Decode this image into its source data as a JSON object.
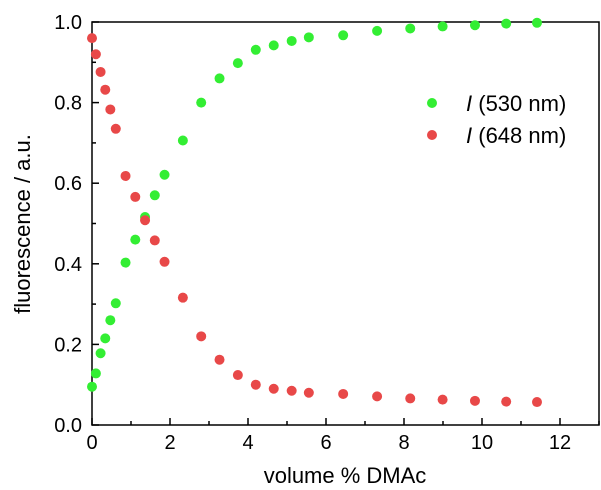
{
  "chart_data": {
    "type": "scatter",
    "title": "",
    "xlabel": "volume % DMAc",
    "ylabel": "fluorescence / a.u.",
    "xlim": [
      0,
      13
    ],
    "ylim": [
      0,
      1.0
    ],
    "xticks": [
      0,
      2,
      4,
      6,
      8,
      10,
      12
    ],
    "xtick_labels": [
      "0",
      "2",
      "4",
      "6",
      "8",
      "10",
      "12"
    ],
    "yticks": [
      0.0,
      0.2,
      0.4,
      0.6,
      0.8,
      1.0
    ],
    "ytick_labels": [
      "0.0",
      "0.2",
      "0.4",
      "0.6",
      "0.8",
      "1.0"
    ],
    "grid": false,
    "legend_position": "top-right",
    "series": [
      {
        "name": "I (530 nm)",
        "name_italic": "I",
        "name_rest": " (530 nm)",
        "color": "#33ee33",
        "x": [
          0.0,
          0.1,
          0.22,
          0.34,
          0.47,
          0.61,
          0.86,
          1.11,
          1.36,
          1.61,
          1.86,
          2.33,
          2.8,
          3.27,
          3.74,
          4.2,
          4.66,
          5.12,
          5.56,
          6.44,
          7.31,
          8.16,
          8.99,
          9.82,
          10.62,
          11.41
        ],
        "y": [
          0.095,
          0.128,
          0.178,
          0.215,
          0.26,
          0.302,
          0.403,
          0.46,
          0.516,
          0.57,
          0.621,
          0.706,
          0.8,
          0.86,
          0.898,
          0.931,
          0.942,
          0.953,
          0.962,
          0.967,
          0.978,
          0.984,
          0.989,
          0.992,
          0.996,
          0.998
        ]
      },
      {
        "name": "I (648 nm)",
        "name_italic": "I",
        "name_rest": " (648 nm)",
        "color": "#e84848",
        "x": [
          0.0,
          0.1,
          0.22,
          0.34,
          0.47,
          0.61,
          0.86,
          1.11,
          1.36,
          1.61,
          1.86,
          2.33,
          2.8,
          3.27,
          3.74,
          4.2,
          4.66,
          5.12,
          5.56,
          6.44,
          7.31,
          8.16,
          8.99,
          9.82,
          10.62,
          11.41
        ],
        "y": [
          0.96,
          0.92,
          0.876,
          0.832,
          0.783,
          0.735,
          0.618,
          0.566,
          0.508,
          0.458,
          0.405,
          0.316,
          0.22,
          0.162,
          0.124,
          0.1,
          0.09,
          0.085,
          0.08,
          0.077,
          0.071,
          0.066,
          0.063,
          0.06,
          0.058,
          0.057
        ]
      }
    ]
  }
}
